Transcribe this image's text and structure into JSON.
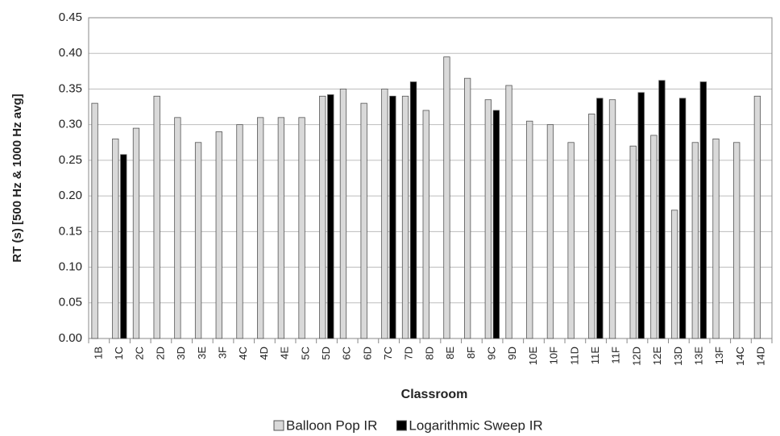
{
  "chart_data": {
    "type": "bar",
    "categories": [
      "1B",
      "1C",
      "2C",
      "2D",
      "3D",
      "3E",
      "3F",
      "4C",
      "4D",
      "4E",
      "5C",
      "5D",
      "6C",
      "6D",
      "7C",
      "7D",
      "8D",
      "8E",
      "8F",
      "9C",
      "9D",
      "10E",
      "10F",
      "11D",
      "11E",
      "11F",
      "12D",
      "12E",
      "13D",
      "13E",
      "13F",
      "14C",
      "14D"
    ],
    "series": [
      {
        "name": "Balloon Pop IR",
        "color": "#d9d9d9",
        "values": [
          0.33,
          0.28,
          0.295,
          0.34,
          0.31,
          0.275,
          0.29,
          0.3,
          0.31,
          0.31,
          0.31,
          0.34,
          0.35,
          0.33,
          0.35,
          0.34,
          0.32,
          0.395,
          0.365,
          0.335,
          0.355,
          0.305,
          0.3,
          0.275,
          0.315,
          0.335,
          0.27,
          0.285,
          0.18,
          0.275,
          0.28,
          0.275,
          0.34
        ]
      },
      {
        "name": "Logarithmic Sweep IR",
        "color": "#000000",
        "values": [
          null,
          0.258,
          null,
          null,
          null,
          null,
          null,
          null,
          null,
          null,
          null,
          0.342,
          null,
          null,
          0.34,
          0.36,
          null,
          null,
          null,
          0.32,
          null,
          null,
          null,
          null,
          0.337,
          null,
          0.345,
          0.362,
          0.337,
          0.36,
          null,
          null,
          null
        ]
      }
    ],
    "xlabel": "Classroom",
    "ylabel": "RT (s) [500 Hz & 1000 Hz avg]",
    "ylim": [
      0,
      0.45
    ],
    "yticks": [
      {
        "value": 0,
        "label": "0.00"
      },
      {
        "value": 0.05,
        "label": "0.05"
      },
      {
        "value": 0.1,
        "label": "0.10"
      },
      {
        "value": 0.15,
        "label": "0.15"
      },
      {
        "value": 0.2,
        "label": "0.20"
      },
      {
        "value": 0.25,
        "label": "0.25"
      },
      {
        "value": 0.3,
        "label": "0.30"
      },
      {
        "value": 0.35,
        "label": "0.35"
      },
      {
        "value": 0.4,
        "label": "0.40"
      },
      {
        "value": 0.45,
        "label": "0.45"
      }
    ],
    "grid": true,
    "legend": "bottom"
  }
}
